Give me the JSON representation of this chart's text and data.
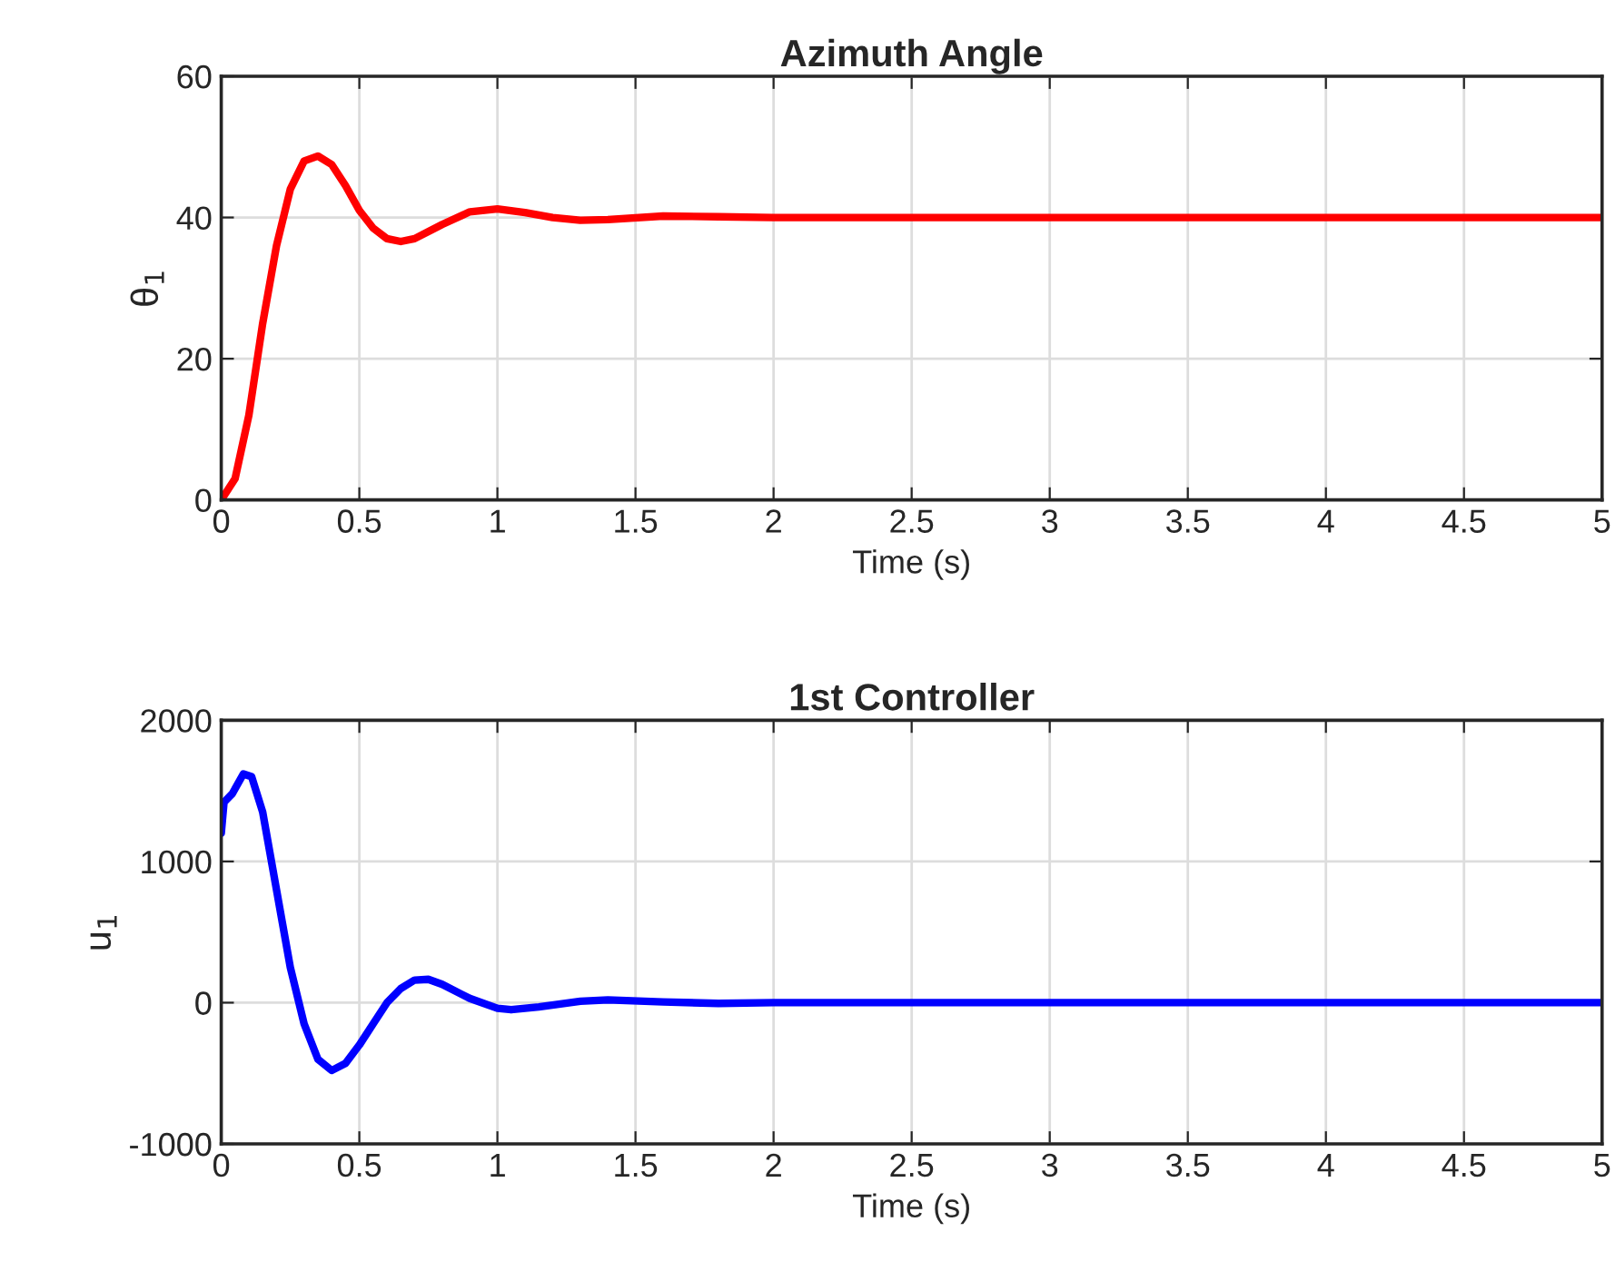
{
  "chart_data": [
    {
      "type": "line",
      "title": "Azimuth Angle",
      "xlabel": "Time (s)",
      "ylabel": "θ$_{1}$",
      "xlim": [
        0,
        5
      ],
      "xticks": [
        0,
        {
          "value": 0.5,
          "label": "0.5"
        },
        1,
        {
          "value": 1.5,
          "label": "1.5"
        },
        2,
        {
          "value": 2.5,
          "label": "2.5"
        },
        3,
        {
          "value": 3.5,
          "label": "3.5"
        },
        4,
        {
          "value": 4.5,
          "label": "4.5"
        },
        5
      ],
      "ylim": [
        0,
        60
      ],
      "yticks": [
        0,
        20,
        40,
        60
      ],
      "grid": true,
      "legend": false,
      "series": [
        {
          "color": "#ff0000",
          "x": [
            0,
            0.05,
            0.1,
            0.15,
            0.2,
            0.25,
            0.3,
            0.35,
            0.4,
            0.45,
            0.5,
            0.55,
            0.6,
            0.65,
            0.7,
            0.8,
            0.9,
            1.0,
            1.1,
            1.2,
            1.3,
            1.4,
            1.6,
            1.8,
            2,
            5
          ],
          "values": [
            0,
            3,
            12,
            25,
            36,
            44,
            48,
            48.7,
            47.5,
            44.5,
            41,
            38.5,
            37,
            36.6,
            37,
            39,
            40.8,
            41.2,
            40.7,
            40,
            39.6,
            39.7,
            40.2,
            40.1,
            40,
            40
          ]
        }
      ]
    },
    {
      "type": "line",
      "title": "1st Controller",
      "xlabel": "Time (s)",
      "ylabel": "u$_{1}$",
      "xlim": [
        0,
        5
      ],
      "xticks": [
        0,
        {
          "value": 0.5,
          "label": "0.5"
        },
        1,
        {
          "value": 1.5,
          "label": "1.5"
        },
        2,
        {
          "value": 2.5,
          "label": "2.5"
        },
        3,
        {
          "value": 3.5,
          "label": "3.5"
        },
        4,
        {
          "value": 4.5,
          "label": "4.5"
        },
        5
      ],
      "ylim": [
        -1000,
        2000
      ],
      "yticks": [
        {
          "value": -1000,
          "label": "-1000"
        },
        0,
        1000,
        2000
      ],
      "grid": true,
      "legend": false,
      "series": [
        {
          "color": "#0000ff",
          "x": [
            0,
            0.01,
            0.04,
            0.08,
            0.11,
            0.15,
            0.2,
            0.25,
            0.3,
            0.35,
            0.4,
            0.45,
            0.5,
            0.55,
            0.6,
            0.65,
            0.7,
            0.75,
            0.8,
            0.9,
            1.0,
            1.05,
            1.15,
            1.3,
            1.4,
            1.6,
            1.8,
            2,
            5
          ],
          "values": [
            1200,
            1420,
            1480,
            1620,
            1600,
            1350,
            800,
            250,
            -150,
            -400,
            -480,
            -430,
            -300,
            -150,
            0,
            100,
            160,
            165,
            130,
            30,
            -40,
            -50,
            -30,
            10,
            20,
            5,
            -5,
            0,
            0
          ]
        }
      ]
    }
  ]
}
